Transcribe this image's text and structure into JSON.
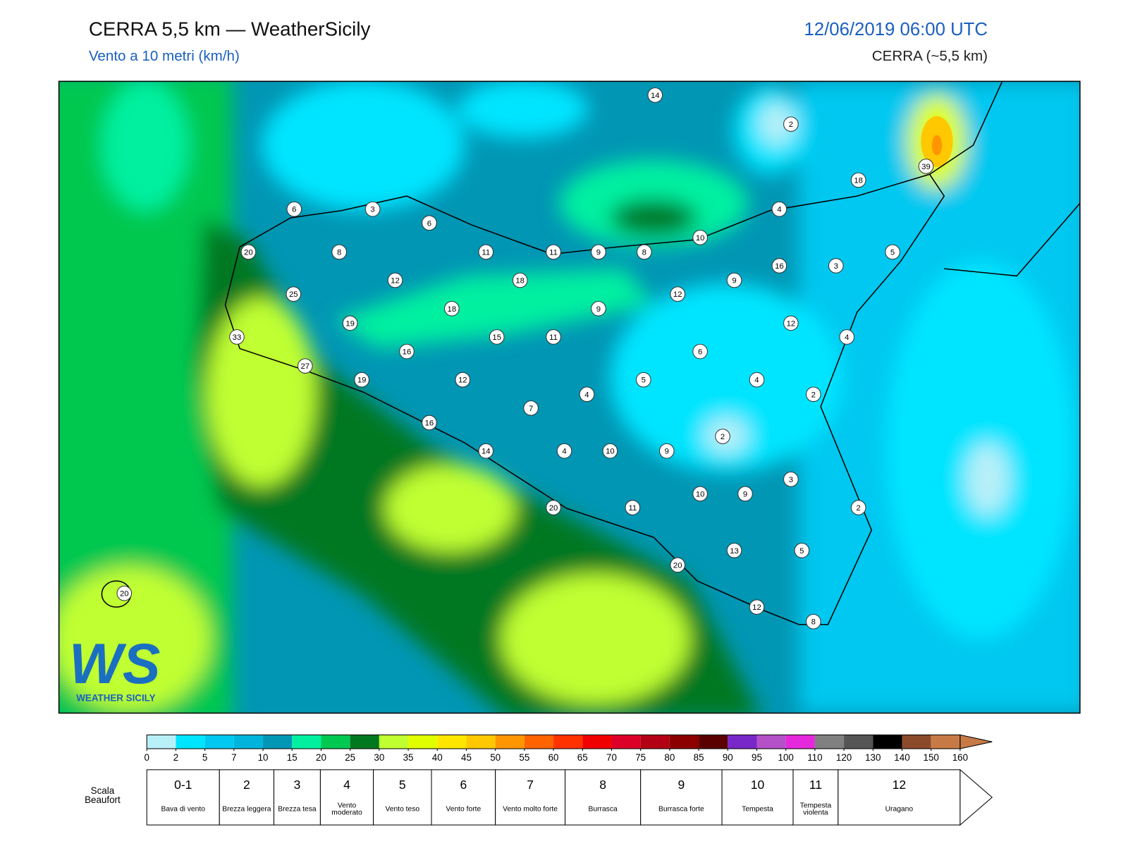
{
  "header": {
    "title": "CERRA 5,5 km — WeatherSicily",
    "subtitle": "Vento a 10 metri (km/h)",
    "datetime": "12/06/2019 06:00 UTC",
    "model": "CERRA (~5,5 km)"
  },
  "map": {
    "stations": [
      14,
      2,
      39,
      18,
      6,
      3,
      6,
      4,
      10,
      20,
      8,
      11,
      11,
      9,
      8,
      5,
      16,
      3,
      12,
      18,
      9,
      25,
      12,
      18,
      9,
      19,
      12,
      33,
      15,
      11,
      4,
      16,
      6,
      27,
      19,
      12,
      5,
      4,
      4,
      2,
      7,
      16,
      2,
      14,
      4,
      10,
      9,
      3,
      10,
      9,
      2,
      20,
      11,
      13,
      5,
      20,
      20,
      12,
      8
    ]
  },
  "colorbar": {
    "ticks": [
      0,
      2,
      5,
      7,
      10,
      15,
      20,
      25,
      30,
      35,
      40,
      45,
      50,
      55,
      60,
      65,
      70,
      75,
      80,
      85,
      90,
      95,
      100,
      110,
      120,
      130,
      140,
      150,
      160
    ],
    "colors": [
      "#b8f0f8",
      "#00e5ff",
      "#00c8f0",
      "#00b4dc",
      "#0096b4",
      "#00f0a0",
      "#00c850",
      "#007820",
      "#c0ff30",
      "#e0ff00",
      "#ffe600",
      "#ffc800",
      "#ff9600",
      "#ff6400",
      "#ff3200",
      "#f00000",
      "#dc0028",
      "#b40014",
      "#8c0000",
      "#5a0000",
      "#7828c8",
      "#b450c8",
      "#e628dc",
      "#808080",
      "#555555",
      "#000000",
      "#8b4a2a",
      "#c87a46"
    ]
  },
  "beaufort": {
    "label": "Scala Beaufort",
    "levels": [
      {
        "force": "0-1",
        "description": "Bava di vento"
      },
      {
        "force": 2,
        "description": "Brezza leggera"
      },
      {
        "force": 3,
        "description": "Brezza tesa"
      },
      {
        "force": 4,
        "description": "Vento moderato"
      },
      {
        "force": 5,
        "description": "Vento teso"
      },
      {
        "force": 6,
        "description": "Vento forte"
      },
      {
        "force": 7,
        "description": "Vento molto forte"
      },
      {
        "force": 8,
        "description": "Burrasca"
      },
      {
        "force": 9,
        "description": "Burrasca forte"
      },
      {
        "force": 10,
        "description": "Tempesta"
      },
      {
        "force": 11,
        "description": "Tempesta violenta"
      },
      {
        "force": 12,
        "description": "Uragano"
      }
    ]
  },
  "logo": {
    "initials": "WS",
    "name": "WEATHER SICILY"
  }
}
